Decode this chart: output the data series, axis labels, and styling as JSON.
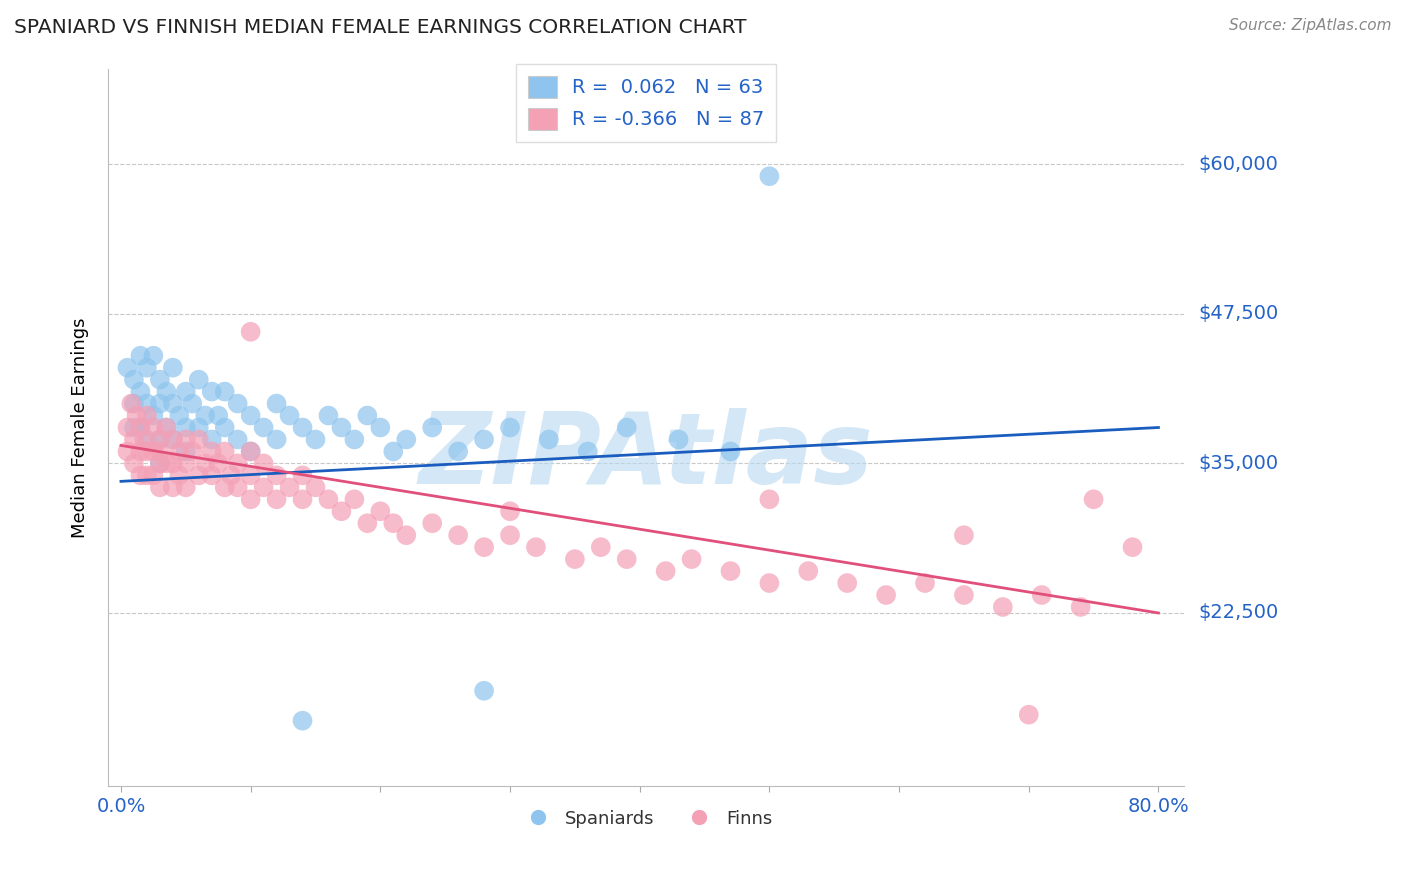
{
  "title": "SPANIARD VS FINNISH MEDIAN FEMALE EARNINGS CORRELATION CHART",
  "source_text": "Source: ZipAtlas.com",
  "ylabel": "Median Female Earnings",
  "xlim": [
    -0.01,
    0.82
  ],
  "ylim": [
    8000,
    68000
  ],
  "yticks": [
    22500,
    35000,
    47500,
    60000
  ],
  "ytick_labels": [
    "$22,500",
    "$35,000",
    "$47,500",
    "$60,000"
  ],
  "xticks": [
    0.0,
    0.1,
    0.2,
    0.3,
    0.4,
    0.5,
    0.6,
    0.7,
    0.8
  ],
  "xtick_labels": [
    "0.0%",
    "",
    "",
    "",
    "",
    "",
    "",
    "",
    "80.0%"
  ],
  "blue_color": "#8ec4ee",
  "pink_color": "#f4a0b5",
  "blue_line_color": "#1a5dbe",
  "pink_line_color": "#e0507a",
  "R_blue": 0.062,
  "N_blue": 63,
  "R_pink": -0.366,
  "N_pink": 87,
  "watermark": "ZIPAtlas",
  "watermark_color": "#b8d8f0",
  "background_color": "#ffffff",
  "grid_color": "#c8c8c8",
  "title_color": "#222222",
  "tick_label_color": "#2563c7",
  "blue_scatter": {
    "x": [
      0.005,
      0.01,
      0.01,
      0.01,
      0.015,
      0.015,
      0.015,
      0.02,
      0.02,
      0.02,
      0.025,
      0.025,
      0.03,
      0.03,
      0.03,
      0.03,
      0.035,
      0.035,
      0.04,
      0.04,
      0.04,
      0.045,
      0.05,
      0.05,
      0.05,
      0.055,
      0.06,
      0.06,
      0.065,
      0.07,
      0.07,
      0.075,
      0.08,
      0.08,
      0.09,
      0.09,
      0.1,
      0.1,
      0.11,
      0.12,
      0.12,
      0.13,
      0.14,
      0.15,
      0.16,
      0.17,
      0.18,
      0.19,
      0.2,
      0.21,
      0.22,
      0.24,
      0.26,
      0.28,
      0.3,
      0.33,
      0.36,
      0.39,
      0.43,
      0.47,
      0.14,
      0.28,
      0.5
    ],
    "y": [
      43000,
      42000,
      40000,
      38000,
      44000,
      41000,
      38000,
      43000,
      40000,
      37000,
      44000,
      39000,
      42000,
      40000,
      37000,
      35000,
      41000,
      38000,
      43000,
      40000,
      37000,
      39000,
      41000,
      38000,
      36000,
      40000,
      42000,
      38000,
      39000,
      41000,
      37000,
      39000,
      41000,
      38000,
      40000,
      37000,
      39000,
      36000,
      38000,
      40000,
      37000,
      39000,
      38000,
      37000,
      39000,
      38000,
      37000,
      39000,
      38000,
      36000,
      37000,
      38000,
      36000,
      37000,
      38000,
      37000,
      36000,
      38000,
      37000,
      36000,
      13500,
      16000,
      59000
    ]
  },
  "pink_scatter": {
    "x": [
      0.005,
      0.005,
      0.008,
      0.01,
      0.01,
      0.012,
      0.015,
      0.015,
      0.015,
      0.018,
      0.02,
      0.02,
      0.02,
      0.025,
      0.025,
      0.025,
      0.03,
      0.03,
      0.03,
      0.03,
      0.035,
      0.035,
      0.04,
      0.04,
      0.04,
      0.045,
      0.045,
      0.05,
      0.05,
      0.05,
      0.055,
      0.06,
      0.06,
      0.065,
      0.07,
      0.07,
      0.075,
      0.08,
      0.08,
      0.085,
      0.09,
      0.09,
      0.1,
      0.1,
      0.1,
      0.11,
      0.11,
      0.12,
      0.12,
      0.13,
      0.14,
      0.14,
      0.15,
      0.16,
      0.17,
      0.18,
      0.19,
      0.2,
      0.21,
      0.22,
      0.24,
      0.26,
      0.28,
      0.3,
      0.32,
      0.35,
      0.37,
      0.39,
      0.42,
      0.44,
      0.47,
      0.5,
      0.53,
      0.56,
      0.59,
      0.62,
      0.65,
      0.68,
      0.71,
      0.74,
      0.1,
      0.3,
      0.5,
      0.65,
      0.7,
      0.75,
      0.78
    ],
    "y": [
      38000,
      36000,
      40000,
      37000,
      35000,
      39000,
      38000,
      36000,
      34000,
      37000,
      39000,
      36000,
      34000,
      38000,
      36000,
      34000,
      37000,
      35000,
      33000,
      36000,
      38000,
      35000,
      37000,
      35000,
      33000,
      36000,
      34000,
      37000,
      35000,
      33000,
      36000,
      37000,
      34000,
      35000,
      36000,
      34000,
      35000,
      36000,
      33000,
      34000,
      35000,
      33000,
      36000,
      34000,
      32000,
      35000,
      33000,
      34000,
      32000,
      33000,
      34000,
      32000,
      33000,
      32000,
      31000,
      32000,
      30000,
      31000,
      30000,
      29000,
      30000,
      29000,
      28000,
      29000,
      28000,
      27000,
      28000,
      27000,
      26000,
      27000,
      26000,
      25000,
      26000,
      25000,
      24000,
      25000,
      24000,
      23000,
      24000,
      23000,
      46000,
      31000,
      32000,
      29000,
      14000,
      32000,
      28000
    ]
  },
  "blue_line": {
    "x0": 0.0,
    "x1": 0.8,
    "y0": 33500,
    "y1": 38000
  },
  "pink_line": {
    "x0": 0.0,
    "x1": 0.8,
    "y0": 36500,
    "y1": 22500
  }
}
